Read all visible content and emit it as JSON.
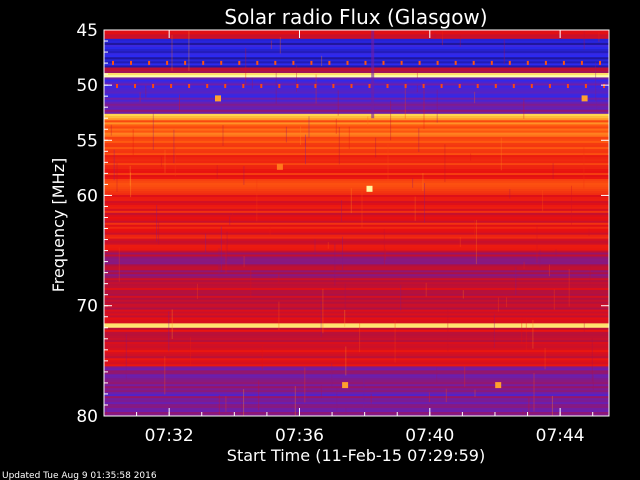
{
  "chart_data": {
    "type": "heatmap",
    "title": "Solar radio Flux (Glasgow)",
    "xlabel": "Start Time (11-Feb-15 07:29:59)",
    "ylabel": "Frequency [MHz]",
    "x_unit": "minutes after 07:29:59",
    "xlim": [
      0,
      15.5
    ],
    "ylim": [
      45,
      80
    ],
    "y_inverted": true,
    "x_ticks": [
      {
        "value": 2.0,
        "label": "07:32"
      },
      {
        "value": 6.0,
        "label": "07:36"
      },
      {
        "value": 10.0,
        "label": "07:40"
      },
      {
        "value": 14.0,
        "label": "07:44"
      }
    ],
    "y_ticks": [
      {
        "value": 45,
        "label": "45"
      },
      {
        "value": 50,
        "label": "50"
      },
      {
        "value": 55,
        "label": "55"
      },
      {
        "value": 60,
        "label": "60"
      },
      {
        "value": 70,
        "label": "70"
      },
      {
        "value": 80,
        "label": "80"
      }
    ],
    "colormap": [
      "#1a0a6b",
      "#2a2af0",
      "#6a1fb0",
      "#b01040",
      "#e81010",
      "#ff5a10",
      "#ffd040",
      "#ffffb0"
    ],
    "intensity_bands": [
      {
        "from": 45.0,
        "to": 45.8,
        "level": 0.55
      },
      {
        "from": 45.8,
        "to": 48.4,
        "level": 0.12
      },
      {
        "from": 48.4,
        "to": 48.9,
        "level": 0.45
      },
      {
        "from": 48.9,
        "to": 49.3,
        "level": 0.98
      },
      {
        "from": 49.3,
        "to": 51.5,
        "level": 0.22
      },
      {
        "from": 51.5,
        "to": 52.6,
        "level": 0.32
      },
      {
        "from": 52.6,
        "to": 53.0,
        "level": 0.9
      },
      {
        "from": 53.0,
        "to": 55.8,
        "level": 0.72
      },
      {
        "from": 55.8,
        "to": 60.5,
        "level": 0.62
      },
      {
        "from": 60.5,
        "to": 65.0,
        "level": 0.56
      },
      {
        "from": 65.0,
        "to": 67.5,
        "level": 0.42
      },
      {
        "from": 67.5,
        "to": 71.6,
        "level": 0.5
      },
      {
        "from": 71.6,
        "to": 72.0,
        "level": 0.95
      },
      {
        "from": 72.0,
        "to": 75.5,
        "level": 0.52
      },
      {
        "from": 75.5,
        "to": 80.0,
        "level": 0.3
      }
    ],
    "hotspots": [
      {
        "x": 8.15,
        "y": 59.4,
        "level": 0.98
      },
      {
        "x": 5.4,
        "y": 57.4,
        "level": 0.75
      },
      {
        "x": 3.5,
        "y": 51.2,
        "level": 0.8
      },
      {
        "x": 14.75,
        "y": 51.2,
        "level": 0.8
      },
      {
        "x": 7.4,
        "y": 77.2,
        "level": 0.8
      },
      {
        "x": 12.1,
        "y": 77.2,
        "level": 0.8
      }
    ]
  },
  "footer": {
    "updated": "Updated Tue Aug  9 01:35:58 2016"
  }
}
